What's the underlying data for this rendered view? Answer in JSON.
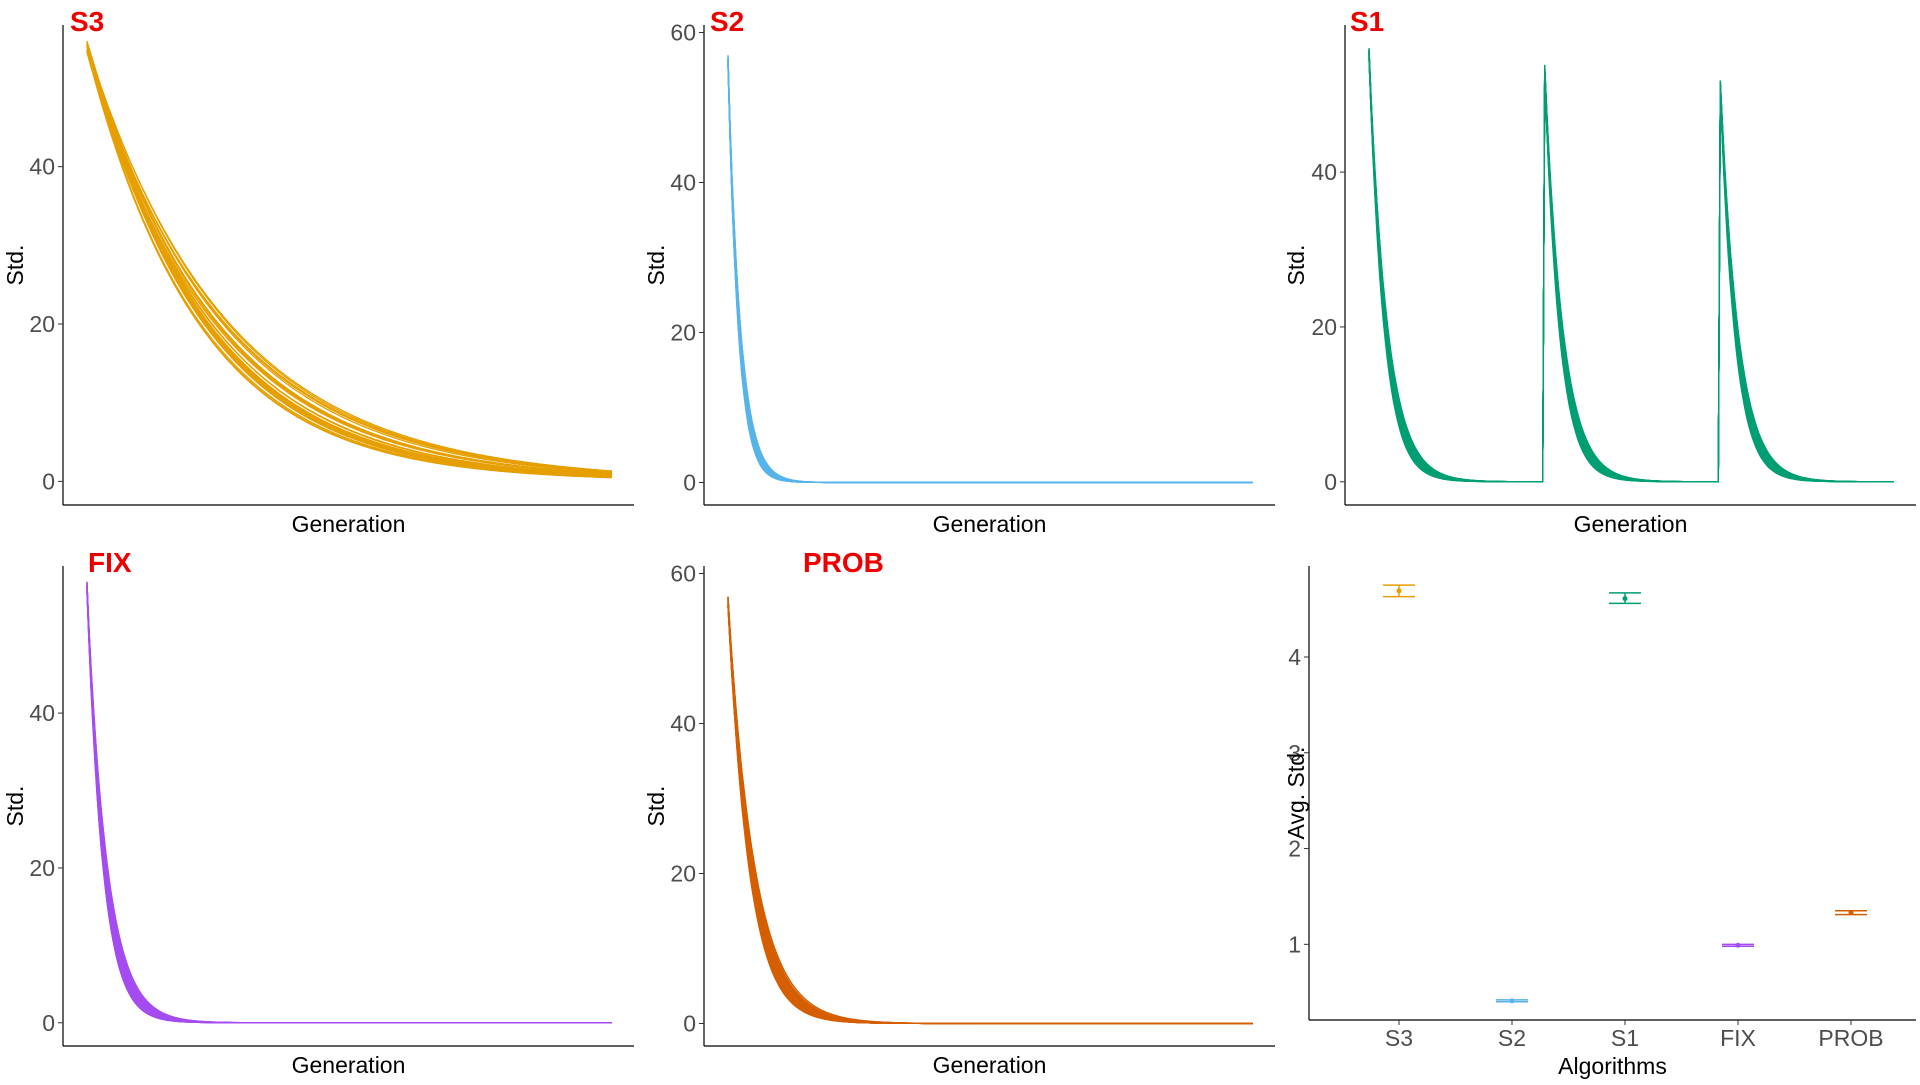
{
  "figure": {
    "charts": [
      {
        "type": "line",
        "title": "S3",
        "xlabel": "Generation",
        "ylabel": "Std.",
        "y_ticks": [
          0,
          20,
          40
        ],
        "ylim": [
          -3,
          58
        ],
        "color": "#e69f00",
        "pattern": "single-decay",
        "curves": 30,
        "start": 56,
        "decay_rate_range": [
          3.6,
          4.8
        ],
        "x_ticks_shown": false,
        "grid": false
      },
      {
        "type": "line",
        "title": "S2",
        "xlabel": "Generation",
        "ylabel": "Std.",
        "y_ticks": [
          0,
          20,
          40,
          60
        ],
        "ylim": [
          -3,
          61
        ],
        "color": "#56b4e9",
        "pattern": "single-decay",
        "curves": 30,
        "start": 57,
        "decay_rate_range": [
          42,
          52
        ],
        "x_ticks_shown": false,
        "grid": false
      },
      {
        "type": "line",
        "title": "S1",
        "xlabel": "Generation",
        "ylabel": "Std.",
        "y_ticks": [
          0,
          20,
          40
        ],
        "ylim": [
          -3,
          59
        ],
        "color": "#009e73",
        "pattern": "restarting-decay",
        "restarts": 3,
        "curves": 30,
        "start": 56,
        "decay_rate_range": [
          28,
          36
        ],
        "x_ticks_shown": false,
        "grid": false
      },
      {
        "type": "line",
        "title": "FIX",
        "xlabel": "Generation",
        "ylabel": "Std.",
        "y_ticks": [
          0,
          20,
          40
        ],
        "ylim": [
          -3,
          59
        ],
        "color": "#a44cf0",
        "pattern": "single-decay",
        "curves": 30,
        "start": 57,
        "decay_rate_range": [
          26,
          34
        ],
        "x_ticks_shown": false,
        "grid": false
      },
      {
        "type": "line",
        "title": "PROB",
        "xlabel": "Generation",
        "ylabel": "Std.",
        "y_ticks": [
          0,
          20,
          40,
          60
        ],
        "ylim": [
          -3,
          61
        ],
        "color": "#d55e00",
        "pattern": "single-decay",
        "curves": 30,
        "start": 57,
        "decay_rate_range": [
          19,
          26
        ],
        "x_ticks_shown": false,
        "grid": false
      },
      {
        "type": "scatter",
        "title": "",
        "xlabel": "Algorithms",
        "ylabel": "Avg. Std.",
        "categories": [
          "S3",
          "S2",
          "S1",
          "FIX",
          "PROB"
        ],
        "values": [
          4.69,
          0.41,
          4.61,
          0.99,
          1.33
        ],
        "error_low": [
          4.63,
          0.4,
          4.56,
          0.98,
          1.31
        ],
        "error_high": [
          4.75,
          0.42,
          4.67,
          1.0,
          1.35
        ],
        "colors": [
          "#e69f00",
          "#56b4e9",
          "#009e73",
          "#a44cf0",
          "#d55e00"
        ],
        "y_ticks": [
          1,
          2,
          3,
          4
        ],
        "ylim": [
          0.21,
          4.95
        ],
        "grid": false
      }
    ]
  }
}
